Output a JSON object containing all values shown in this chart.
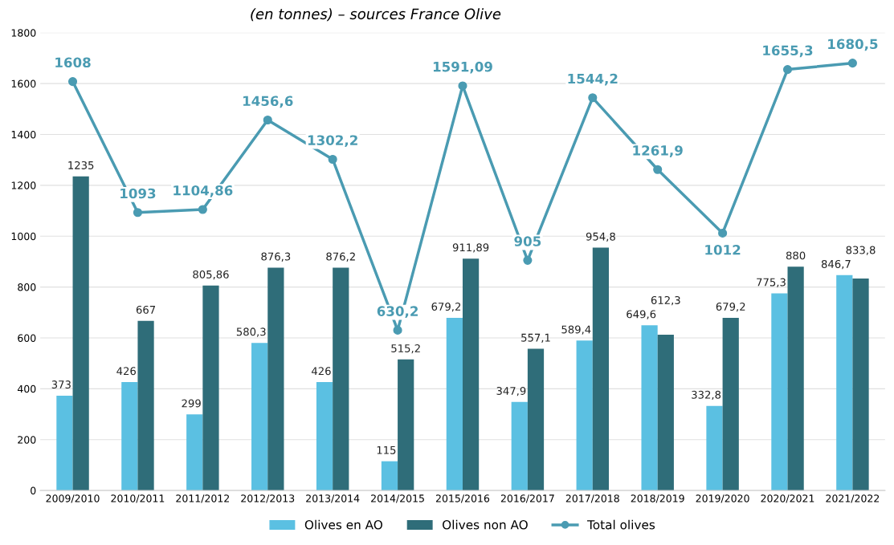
{
  "chart_data": {
    "type": "bar",
    "subtitle": "(en tonnes) – sources France Olive",
    "categories": [
      "2009/2010",
      "2010/2011",
      "2011/2012",
      "2012/2013",
      "2013/2014",
      "2014/2015",
      "2015/2016",
      "2016/2017",
      "2017/2018",
      "2018/2019",
      "2019/2020",
      "2020/2021",
      "2021/2022"
    ],
    "series": [
      {
        "name": "Olives en AO",
        "color": "#5bc0e2",
        "values": [
          373,
          426,
          299,
          580.3,
          426,
          115,
          679.2,
          347.9,
          589.4,
          649.6,
          332.8,
          775.3,
          846.7
        ],
        "value_labels": [
          "373",
          "426",
          "299",
          "580,3",
          "426",
          "115",
          "679,2",
          "347,9",
          "589,4",
          "649,6",
          "332,8",
          "775,3",
          "846,7"
        ]
      },
      {
        "name": "Olives non AO",
        "color": "#2f6d79",
        "values": [
          1235,
          667,
          805.86,
          876.3,
          876.2,
          515.2,
          911.89,
          557.1,
          954.8,
          612.3,
          679.2,
          880,
          833.8
        ],
        "value_labels": [
          "1235",
          "667",
          "805,86",
          "876,3",
          "876,2",
          "515,2",
          "911,89",
          "557,1",
          "954,8",
          "612,3",
          "679,2",
          "880",
          "833,8"
        ]
      },
      {
        "name": "Total olives",
        "type": "line",
        "color": "#4a9bb2",
        "marker": "circle",
        "values": [
          1608,
          1093,
          1104.86,
          1456.6,
          1302.2,
          630.2,
          1591.09,
          905,
          1544.2,
          1261.9,
          1012,
          1655.3,
          1680.5
        ],
        "value_labels": [
          "1608",
          "1093",
          "1104,86",
          "1456,6",
          "1302,2",
          "630,2",
          "1591,09",
          "905",
          "1544,2",
          "1261,9",
          "1012",
          "1655,3",
          "1680,5"
        ]
      }
    ],
    "ylim": [
      0,
      1800
    ],
    "yticks": [
      0,
      200,
      400,
      600,
      800,
      1000,
      1200,
      1400,
      1600,
      1800
    ],
    "grid": "y",
    "legend": "bottom"
  }
}
